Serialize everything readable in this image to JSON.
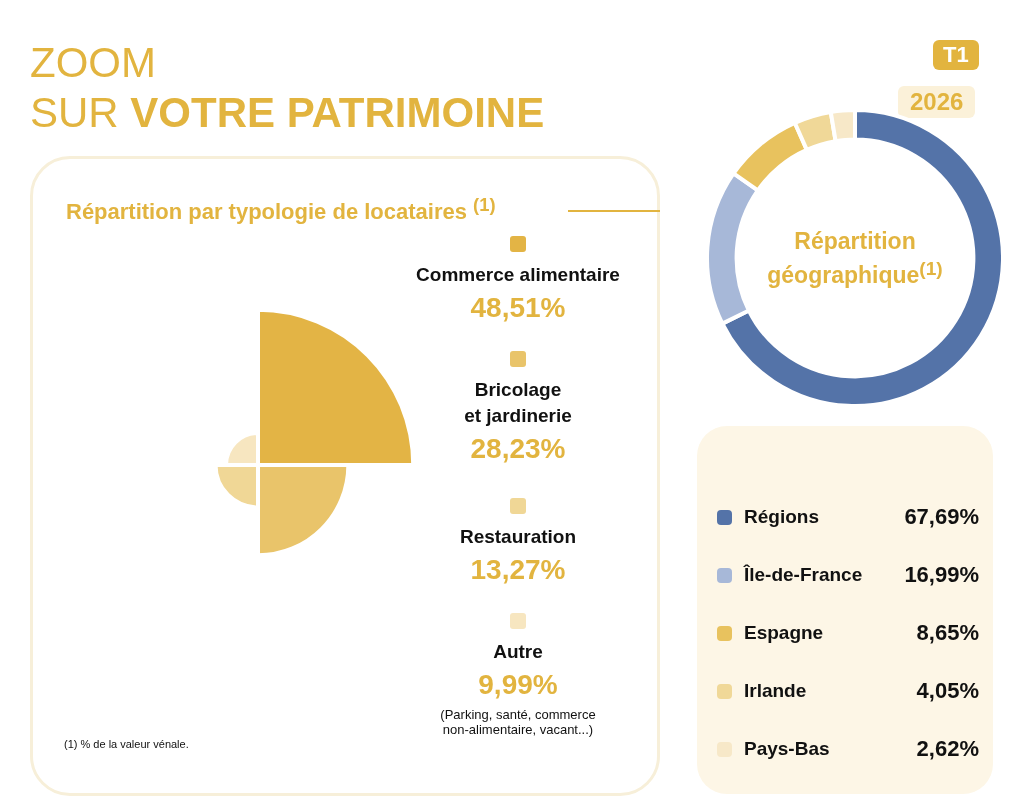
{
  "chart_data": [
    {
      "type": "other",
      "title": "ZOOM SUR VOTRE PATRIMOINE",
      "subtitle": "Répartition par typologie de locataires $^{(1)}$",
      "categories": [
        "Commerce alimentaire",
        "Bricolage\net jardinerie",
        "Restauration",
        "Autre"
      ],
      "values": [
        48.51,
        28.23,
        13.27,
        9.99
      ],
      "colors": [
        "#e3b445",
        "#e9c46a",
        "#f0d796",
        "#f7e6c0"
      ],
      "value_labels": [
        "48,51%",
        "28,23%",
        "13,27%",
        "9,99%"
      ],
      "annotations": [
        "T1",
        "2026",
        "(Parking, santé, commerce\nnon-alimentaire, vacant...)",
        "(1) % de la valeur vénale."
      ]
    },
    {
      "type": "donut",
      "title": "Répartition\ngéographique$^{(1)}$",
      "categories": [
        "Régions",
        "Île-de-France",
        "Espagne",
        "Irlande",
        "Pays-Bas"
      ],
      "values": [
        67.69,
        16.99,
        8.65,
        4.05,
        2.62
      ],
      "colors": [
        "#5473a8",
        "#a7b8d8",
        "#e8c25e",
        "#f0d898",
        "#f7e8c8"
      ],
      "value_labels": [
        "67,69%",
        "16,99%",
        "8,65%",
        "4,05%",
        "2,62%"
      ],
      "legend": "bottom"
    }
  ]
}
